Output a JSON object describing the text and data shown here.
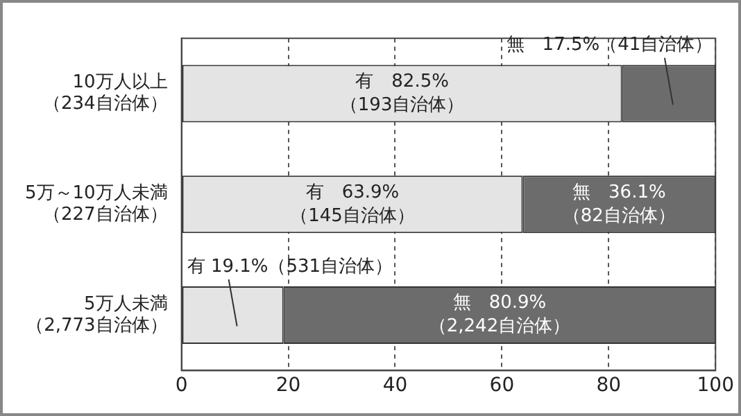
{
  "chart_data": {
    "type": "bar",
    "orientation": "horizontal",
    "stacked": true,
    "categories": [
      "10万人以上（234自治体）",
      "5万～10万人未満（227自治体）",
      "5万人未満（2,773自治体）"
    ],
    "series": [
      {
        "color": "#e4e4e4",
        "values": [
          82.5,
          63.9,
          19.1
        ],
        "value_labels": [
          "有　82.5%\n（193自治体）",
          "有　63.9%\n（145自治体）",
          "有 19.1%（531自治体）"
        ]
      },
      {
        "color": "#6c6c6c",
        "values": [
          17.5,
          36.1,
          80.9
        ],
        "value_labels": [
          "無　17.5%（41自治体）",
          "無　36.1%\n（82自治体）",
          "無　80.9%\n（2,242自治体）"
        ]
      }
    ],
    "xlim": [
      0,
      100
    ],
    "xticks": [
      0,
      20,
      40,
      60,
      80,
      100
    ],
    "grid": "x",
    "legend": false
  }
}
